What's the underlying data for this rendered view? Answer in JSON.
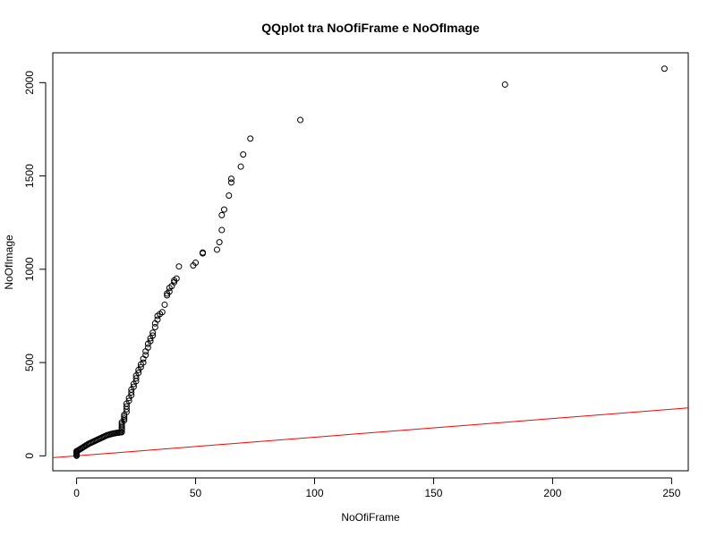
{
  "chart_data": {
    "type": "scatter",
    "title": "QQplot tra NoOfiFrame e NoOfImage",
    "xlabel": "NoOfiFrame",
    "ylabel": "NoOfImage",
    "xlim": [
      -10,
      257
    ],
    "ylim": [
      -80,
      2160
    ],
    "xticks": [
      0,
      50,
      100,
      150,
      200,
      250
    ],
    "yticks": [
      0,
      500,
      1000,
      1500,
      2000
    ],
    "reference_line": {
      "intercept": 0,
      "slope": 1,
      "color": "#ff0000"
    },
    "point_color": "#000000",
    "points": [
      [
        0,
        0
      ],
      [
        0,
        5
      ],
      [
        0,
        10
      ],
      [
        0,
        15
      ],
      [
        0,
        20
      ],
      [
        0,
        25
      ],
      [
        0.5,
        28
      ],
      [
        1,
        32
      ],
      [
        1.5,
        36
      ],
      [
        2,
        40
      ],
      [
        2.5,
        44
      ],
      [
        3,
        48
      ],
      [
        3.5,
        52
      ],
      [
        4,
        56
      ],
      [
        4.5,
        60
      ],
      [
        5,
        64
      ],
      [
        5.5,
        67
      ],
      [
        6,
        70
      ],
      [
        6.5,
        73
      ],
      [
        7,
        76
      ],
      [
        7.5,
        79
      ],
      [
        8,
        82
      ],
      [
        8.5,
        85
      ],
      [
        9,
        88
      ],
      [
        9.5,
        91
      ],
      [
        10,
        94
      ],
      [
        10.5,
        97
      ],
      [
        11,
        100
      ],
      [
        11.5,
        103
      ],
      [
        12,
        106
      ],
      [
        12.5,
        109
      ],
      [
        13,
        111
      ],
      [
        13.5,
        113
      ],
      [
        14,
        115
      ],
      [
        14.5,
        117
      ],
      [
        15,
        118
      ],
      [
        15.5,
        120
      ],
      [
        16,
        121
      ],
      [
        16.5,
        122
      ],
      [
        17,
        123
      ],
      [
        17.5,
        124
      ],
      [
        18,
        125
      ],
      [
        18.5,
        126
      ],
      [
        19,
        127
      ],
      [
        19,
        140
      ],
      [
        19,
        150
      ],
      [
        19,
        160
      ],
      [
        19,
        170
      ],
      [
        19,
        180
      ],
      [
        20,
        190
      ],
      [
        20,
        200
      ],
      [
        20,
        210
      ],
      [
        20,
        220
      ],
      [
        21,
        235
      ],
      [
        21,
        250
      ],
      [
        21,
        265
      ],
      [
        21,
        280
      ],
      [
        22,
        295
      ],
      [
        22,
        310
      ],
      [
        23,
        325
      ],
      [
        23,
        340
      ],
      [
        23,
        355
      ],
      [
        24,
        370
      ],
      [
        24,
        385
      ],
      [
        25,
        400
      ],
      [
        25,
        415
      ],
      [
        25,
        430
      ],
      [
        26,
        445
      ],
      [
        26,
        460
      ],
      [
        27,
        475
      ],
      [
        27,
        490
      ],
      [
        28,
        500
      ],
      [
        28,
        520
      ],
      [
        29,
        540
      ],
      [
        29,
        560
      ],
      [
        30,
        580
      ],
      [
        30,
        600
      ],
      [
        31,
        615
      ],
      [
        31,
        630
      ],
      [
        32,
        645
      ],
      [
        32,
        660
      ],
      [
        33,
        690
      ],
      [
        33,
        710
      ],
      [
        34,
        730
      ],
      [
        34,
        750
      ],
      [
        35,
        760
      ],
      [
        36,
        770
      ],
      [
        37,
        810
      ],
      [
        38,
        860
      ],
      [
        38,
        870
      ],
      [
        39,
        880
      ],
      [
        39,
        900
      ],
      [
        40,
        910
      ],
      [
        41,
        930
      ],
      [
        41,
        940
      ],
      [
        42,
        950
      ],
      [
        43,
        1015
      ],
      [
        49,
        1020
      ],
      [
        50,
        1035
      ],
      [
        53,
        1085
      ],
      [
        53,
        1090
      ],
      [
        59,
        1105
      ],
      [
        60,
        1145
      ],
      [
        61,
        1210
      ],
      [
        61,
        1290
      ],
      [
        62,
        1320
      ],
      [
        64,
        1395
      ],
      [
        65,
        1465
      ],
      [
        65,
        1485
      ],
      [
        69,
        1550
      ],
      [
        70,
        1615
      ],
      [
        73,
        1700
      ],
      [
        94,
        1800
      ],
      [
        180,
        1990
      ],
      [
        247,
        2075
      ]
    ]
  }
}
